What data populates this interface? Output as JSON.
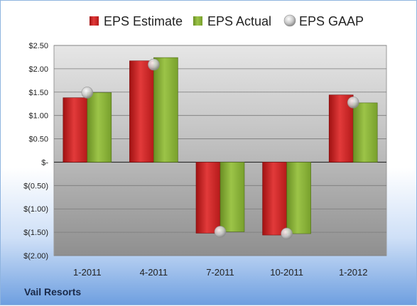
{
  "chart_data": {
    "type": "bar",
    "categories": [
      "1-2011",
      "4-2011",
      "7-2011",
      "10-2011",
      "1-2012"
    ],
    "series": [
      {
        "name": "EPS Estimate",
        "values": [
          1.38,
          2.17,
          -1.52,
          -1.56,
          1.44
        ],
        "color": "#d42a2a"
      },
      {
        "name": "EPS Actual",
        "values": [
          1.49,
          2.24,
          -1.49,
          -1.53,
          1.27
        ],
        "color": "#8cb33a"
      }
    ],
    "gaap": {
      "name": "EPS GAAP",
      "values": [
        1.49,
        2.09,
        -1.49,
        -1.53,
        1.28
      ]
    },
    "y_ticks": [
      2.5,
      2.0,
      1.5,
      1.0,
      0.5,
      0,
      -0.5,
      -1.0,
      -1.5,
      -2.0
    ],
    "y_tick_labels": [
      "$2.50",
      "$2.00",
      "$1.50",
      "$1.00",
      "$0.50",
      "$-",
      "$(0.50)",
      "$(1.00)",
      "$(1.50)",
      "$(2.00)"
    ],
    "ylim": [
      -2.0,
      2.5
    ],
    "grid": true,
    "legend_position": "top"
  },
  "company": "Vail Resorts"
}
